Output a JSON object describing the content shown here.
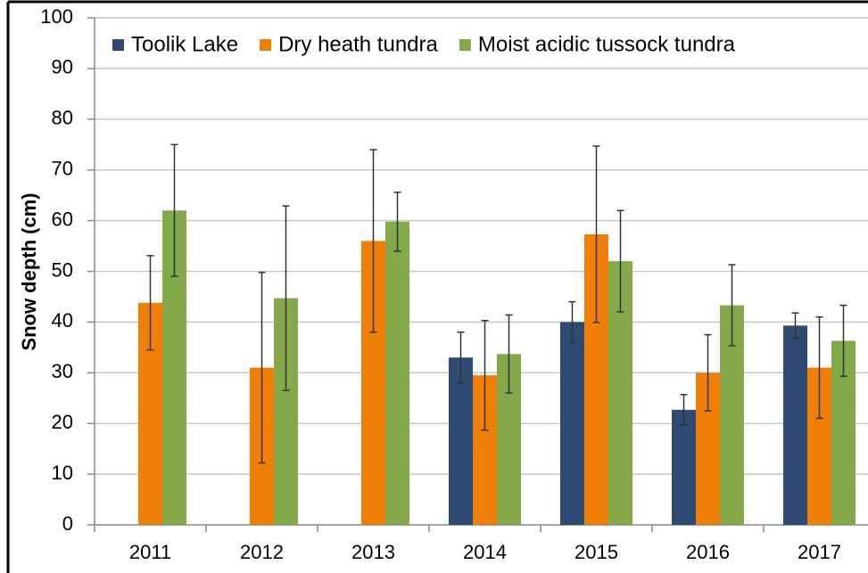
{
  "chart_data": {
    "type": "bar",
    "y_label": "Snow depth (cm)",
    "categories": [
      "2011",
      "2012",
      "2013",
      "2014",
      "2015",
      "2016",
      "2017"
    ],
    "series": [
      {
        "name": "Toolik Lake",
        "color": "#2f4b73",
        "values": [
          null,
          null,
          null,
          33,
          40,
          22.7,
          39.3
        ],
        "errors": [
          null,
          null,
          null,
          5,
          4,
          3,
          2.5
        ]
      },
      {
        "name": "Dry heath tundra",
        "color": "#f07f09",
        "values": [
          43.8,
          31,
          56,
          29.5,
          57.3,
          30,
          31
        ],
        "errors": [
          9.3,
          18.8,
          18,
          10.8,
          17.4,
          7.5,
          10
        ]
      },
      {
        "name": "Moist acidic tussock tundra",
        "color": "#83a94a",
        "values": [
          62,
          44.7,
          59.8,
          33.7,
          52,
          43.3,
          36.3
        ],
        "errors": [
          13,
          18.2,
          5.8,
          7.7,
          10,
          8,
          7
        ]
      }
    ],
    "ylim": [
      0,
      100
    ],
    "yticks": [
      0,
      10,
      20,
      30,
      40,
      50,
      60,
      70,
      80,
      90,
      100
    ],
    "grid": true,
    "legend": "top"
  }
}
